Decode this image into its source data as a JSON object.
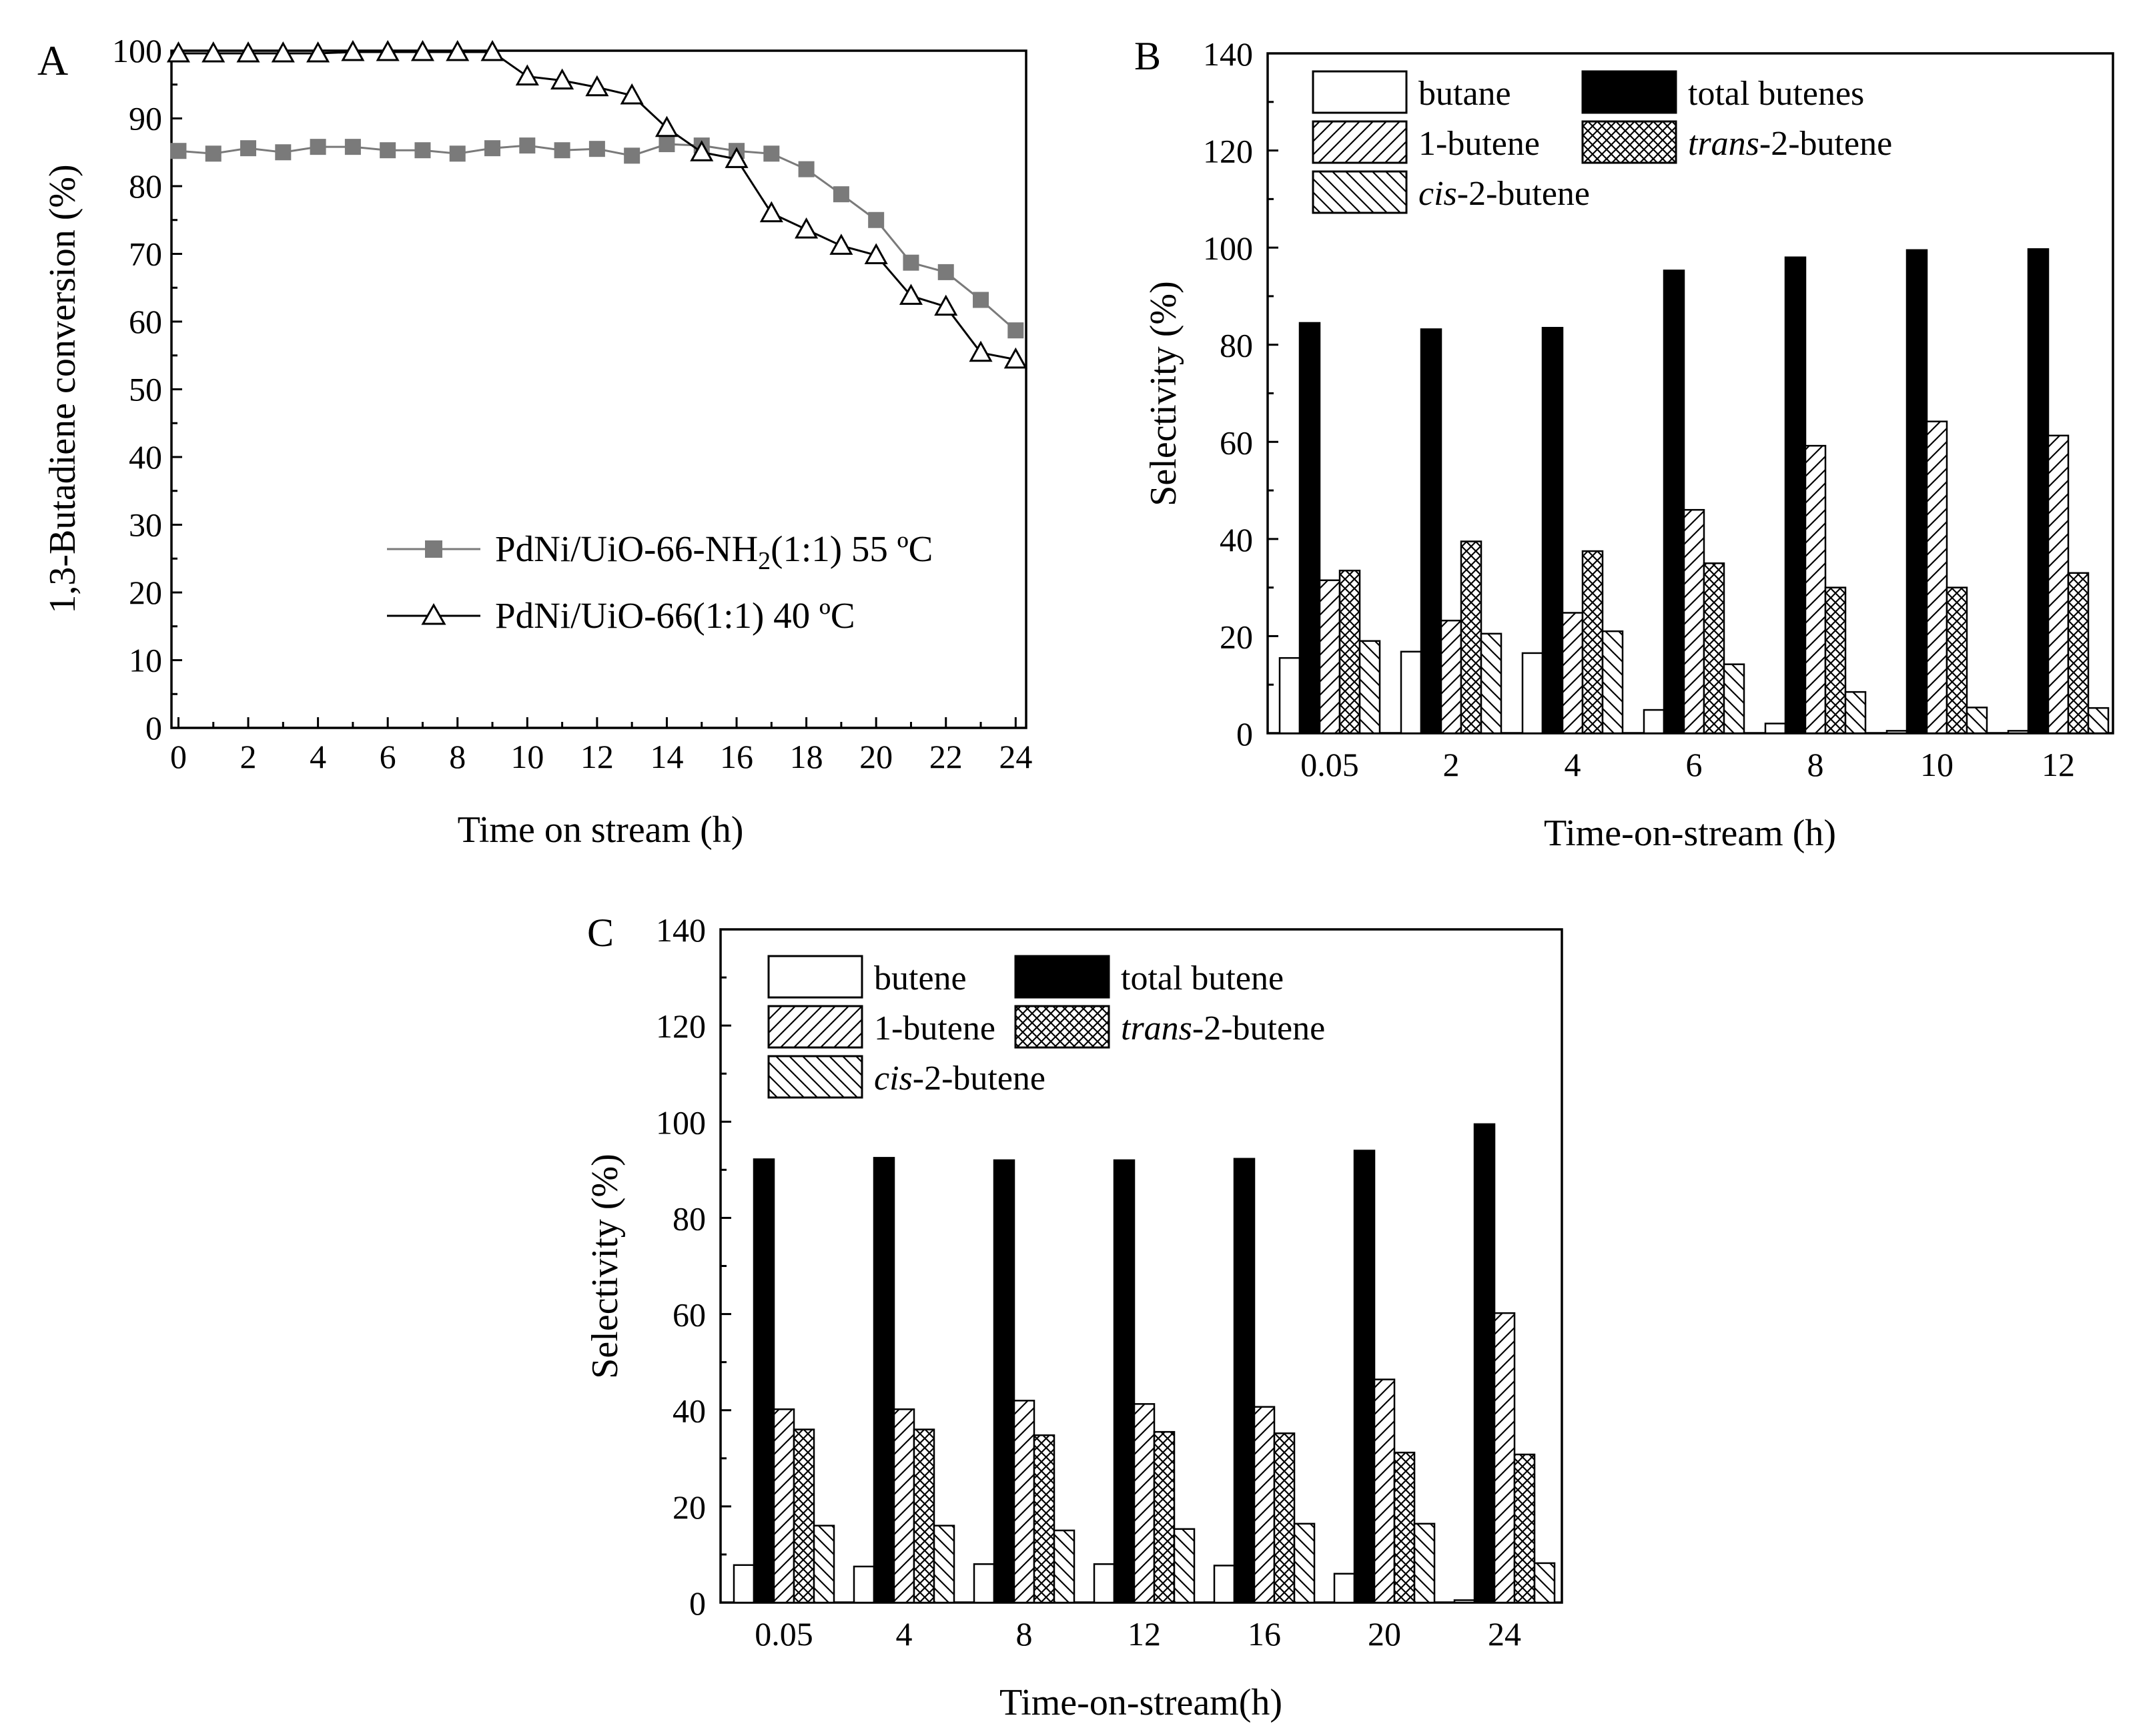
{
  "chart_data": [
    {
      "panel": "A",
      "type": "line",
      "title": "",
      "xlabel": "Time on stream (h)",
      "ylabel": "1,3-Butadiene conversion (%)",
      "xlim": [
        -0.2,
        24.3
      ],
      "ylim": [
        0,
        100
      ],
      "xticks": [
        0,
        2,
        4,
        6,
        8,
        10,
        12,
        14,
        16,
        18,
        20,
        22,
        24
      ],
      "xtick_labels": [
        "0",
        "2",
        "4",
        "6",
        "8",
        "10",
        "12",
        "14",
        "16",
        "18",
        "20",
        "22",
        "24"
      ],
      "yticks": [
        0,
        10,
        20,
        30,
        40,
        50,
        60,
        70,
        80,
        90,
        100
      ],
      "ytick_labels": [
        "0",
        "10",
        "20",
        "30",
        "40",
        "50",
        "60",
        "70",
        "80",
        "90",
        "100"
      ],
      "grid": false,
      "legend_position": "lower-right",
      "series": [
        {
          "name": "PdNi/UiO-66-NH2(1:1) 55 ºC",
          "legend_main": "PdNi/UiO-66-NH",
          "legend_sub": "2",
          "legend_rest": "(1:1) 55 ºC",
          "marker": "filled-square",
          "color": "#7a7a7a",
          "x": [
            0,
            1,
            2,
            3,
            4,
            5,
            6,
            7,
            8,
            9,
            10,
            11,
            12,
            13,
            14,
            15,
            16,
            17,
            18,
            19,
            20,
            21,
            22,
            23,
            24
          ],
          "y": [
            85.2,
            84.8,
            85.6,
            85.0,
            85.8,
            85.8,
            85.3,
            85.3,
            84.8,
            85.6,
            86.0,
            85.3,
            85.5,
            84.5,
            86.2,
            86.0,
            85.2,
            84.8,
            82.5,
            78.8,
            75.0,
            68.7,
            67.3,
            63.2,
            58.7
          ]
        },
        {
          "name": "PdNi/UiO-66(1:1) 40 ºC",
          "legend_main": "PdNi/UiO-66(1:1) 40 ºC",
          "legend_sub": "",
          "legend_rest": "",
          "marker": "open-triangle",
          "color": "#000000",
          "x": [
            0,
            1,
            2,
            3,
            4,
            5,
            6,
            7,
            8,
            9,
            10,
            11,
            12,
            13,
            14,
            15,
            16,
            17,
            18,
            19,
            20,
            21,
            22,
            23,
            24
          ],
          "y": [
            99.6,
            99.6,
            99.6,
            99.6,
            99.6,
            99.8,
            99.8,
            99.8,
            99.8,
            99.8,
            96.2,
            95.6,
            94.6,
            93.4,
            88.6,
            85.0,
            84.0,
            76.0,
            73.6,
            71.2,
            69.8,
            63.8,
            62.2,
            55.4,
            54.4
          ]
        }
      ]
    },
    {
      "panel": "B",
      "type": "bar",
      "title": "",
      "xlabel": "Time-on-stream (h)",
      "ylabel": "Selectivity (%)",
      "ylim": [
        0,
        140
      ],
      "yticks": [
        0,
        20,
        40,
        60,
        80,
        100,
        120,
        140
      ],
      "ytick_labels": [
        "0",
        "20",
        "40",
        "60",
        "80",
        "100",
        "120",
        "140"
      ],
      "categories": [
        "0.05",
        "2",
        "4",
        "6",
        "8",
        "10",
        "12"
      ],
      "grid": false,
      "legend_position": "top-left",
      "series": [
        {
          "name": "butane",
          "pattern": "open",
          "values": [
            15.5,
            16.8,
            16.5,
            4.8,
            2.0,
            0.5,
            0.5
          ]
        },
        {
          "name": "total butenes",
          "pattern": "solid-black",
          "values": [
            84.5,
            83.2,
            83.5,
            95.3,
            98.0,
            99.5,
            99.7
          ]
        },
        {
          "name": "1-butene",
          "pattern": "diagonal-forward",
          "values": [
            31.5,
            23.2,
            24.8,
            46.0,
            59.2,
            64.2,
            61.3
          ]
        },
        {
          "name": "trans-2-butene",
          "pattern": "crosshatch",
          "values": [
            33.5,
            39.5,
            37.5,
            35.0,
            30.0,
            30.0,
            33.0
          ]
        },
        {
          "name": "cis-2-butene",
          "pattern": "diagonal-back",
          "values": [
            19.0,
            20.5,
            21.0,
            14.2,
            8.5,
            5.3,
            5.2
          ]
        }
      ],
      "legend": [
        {
          "pattern": "open",
          "text": "butane",
          "italic_prefix": ""
        },
        {
          "pattern": "solid-black",
          "text": "total butenes",
          "italic_prefix": ""
        },
        {
          "pattern": "diagonal-forward",
          "text": "1-butene",
          "italic_prefix": ""
        },
        {
          "pattern": "crosshatch",
          "text": "-2-butene",
          "italic_prefix": "trans"
        },
        {
          "pattern": "diagonal-back",
          "text": "-2-butene",
          "italic_prefix": "cis"
        }
      ]
    },
    {
      "panel": "C",
      "type": "bar",
      "title": "",
      "xlabel": "Time-on-stream(h)",
      "ylabel": "Selectivity (%)",
      "ylim": [
        0,
        140
      ],
      "yticks": [
        0,
        20,
        40,
        60,
        80,
        100,
        120,
        140
      ],
      "ytick_labels": [
        "0",
        "20",
        "40",
        "60",
        "80",
        "100",
        "120",
        "140"
      ],
      "categories": [
        "0.05",
        "4",
        "8",
        "12",
        "16",
        "20",
        "24"
      ],
      "grid": false,
      "legend_position": "top-left",
      "series": [
        {
          "name": "butene",
          "pattern": "open",
          "values": [
            7.8,
            7.5,
            8.0,
            8.0,
            7.7,
            6.0,
            0.5
          ]
        },
        {
          "name": "total butene",
          "pattern": "solid-black",
          "values": [
            92.2,
            92.5,
            92.0,
            92.0,
            92.3,
            94.0,
            99.5
          ]
        },
        {
          "name": "1-butene",
          "pattern": "diagonal-forward",
          "values": [
            40.2,
            40.2,
            42.0,
            41.3,
            40.7,
            46.4,
            60.2
          ]
        },
        {
          "name": "trans-2-butene",
          "pattern": "crosshatch",
          "values": [
            36.0,
            36.0,
            34.8,
            35.5,
            35.2,
            31.2,
            30.8
          ]
        },
        {
          "name": "cis-2-butene",
          "pattern": "diagonal-back",
          "values": [
            16.0,
            16.0,
            15.0,
            15.3,
            16.4,
            16.4,
            8.2
          ]
        }
      ],
      "legend": [
        {
          "pattern": "open",
          "text": "butene",
          "italic_prefix": ""
        },
        {
          "pattern": "solid-black",
          "text": "total butene",
          "italic_prefix": ""
        },
        {
          "pattern": "diagonal-forward",
          "text": "1-butene",
          "italic_prefix": ""
        },
        {
          "pattern": "crosshatch",
          "text": "-2-butene",
          "italic_prefix": "trans"
        },
        {
          "pattern": "diagonal-back",
          "text": "-2-butene",
          "italic_prefix": "cis"
        }
      ]
    }
  ]
}
